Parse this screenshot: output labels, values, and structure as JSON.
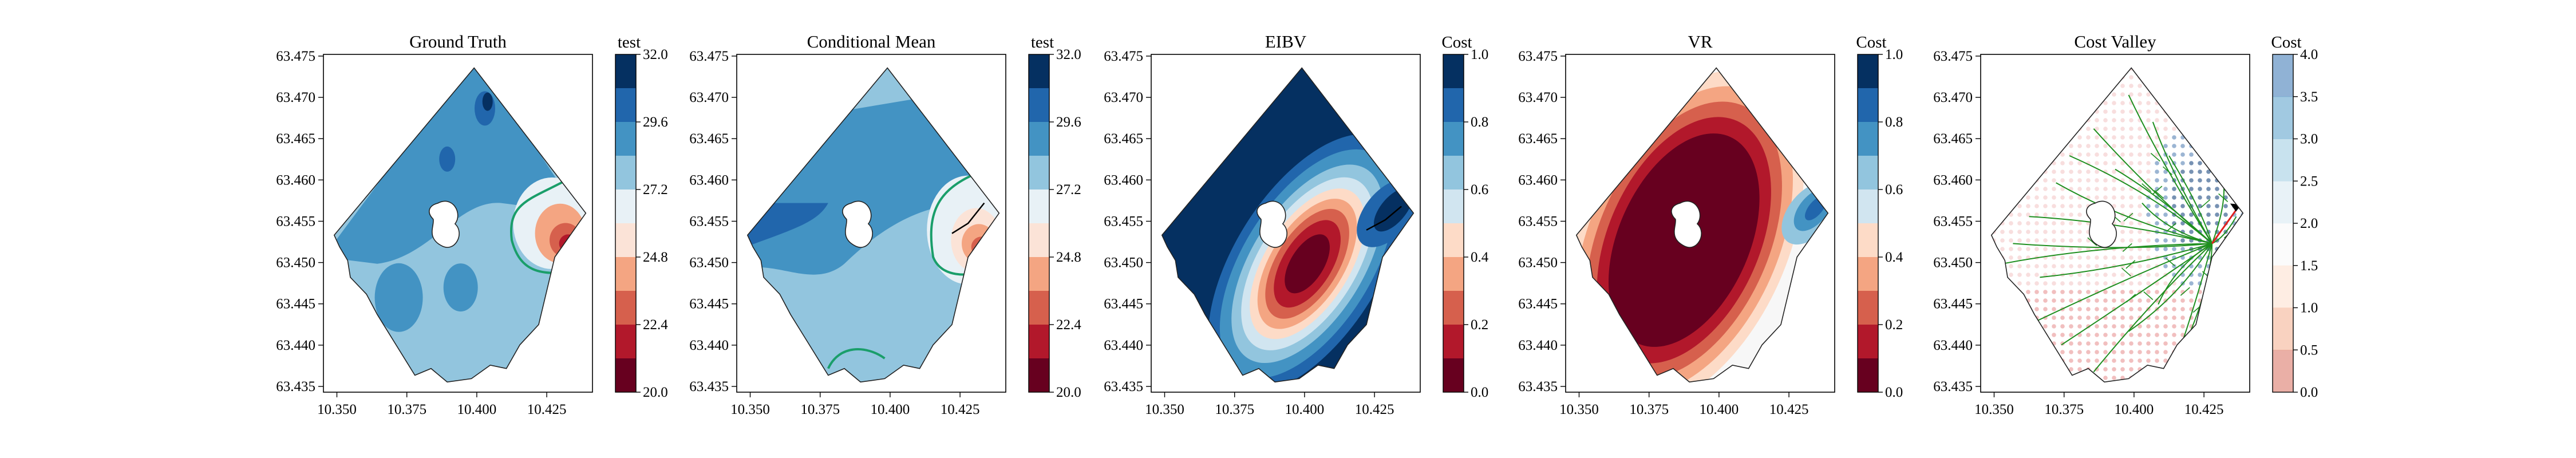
{
  "chart_data": [
    {
      "type": "contour",
      "title": "Ground Truth",
      "x_ticks": [
        "10.350",
        "10.375",
        "10.400",
        "10.425"
      ],
      "y_ticks": [
        "63.475",
        "63.470",
        "63.465",
        "63.460",
        "63.455",
        "63.450",
        "63.445",
        "63.440",
        "63.435"
      ],
      "colorbar": {
        "label": "test",
        "ticks": [
          "32.0",
          "29.6",
          "27.2",
          "24.8",
          "22.4",
          "20.0"
        ],
        "range": [
          20,
          32
        ],
        "colormap": "RdBu"
      },
      "contour_line_color": "#1a9e6a"
    },
    {
      "type": "contour",
      "title": "Conditional Mean",
      "x_ticks": [
        "10.350",
        "10.375",
        "10.400",
        "10.425"
      ],
      "y_ticks": [
        "63.475",
        "63.470",
        "63.465",
        "63.460",
        "63.455",
        "63.450",
        "63.445",
        "63.440",
        "63.435"
      ],
      "colorbar": {
        "label": "test",
        "ticks": [
          "32.0",
          "29.6",
          "27.2",
          "24.8",
          "22.4",
          "20.0"
        ],
        "range": [
          20,
          32
        ],
        "colormap": "RdBu"
      },
      "contour_line_color": "#1a9e6a"
    },
    {
      "type": "contour",
      "title": "EIBV",
      "x_ticks": [
        "10.350",
        "10.375",
        "10.400",
        "10.425"
      ],
      "y_ticks": [
        "63.475",
        "63.470",
        "63.465",
        "63.460",
        "63.455",
        "63.450",
        "63.445",
        "63.440",
        "63.435"
      ],
      "colorbar": {
        "label": "Cost",
        "ticks": [
          "1.0",
          "0.8",
          "0.6",
          "0.4",
          "0.2",
          "0.0"
        ],
        "range": [
          0,
          1
        ],
        "colormap": "RdBu"
      }
    },
    {
      "type": "contour",
      "title": "VR",
      "x_ticks": [
        "10.350",
        "10.375",
        "10.400",
        "10.425"
      ],
      "y_ticks": [
        "63.475",
        "63.470",
        "63.465",
        "63.460",
        "63.455",
        "63.450",
        "63.445",
        "63.440",
        "63.435"
      ],
      "colorbar": {
        "label": "Cost",
        "ticks": [
          "1.0",
          "0.8",
          "0.6",
          "0.4",
          "0.2",
          "0.0"
        ],
        "range": [
          0,
          1
        ],
        "colormap": "RdBu"
      }
    },
    {
      "type": "scatter",
      "title": "Cost Valley",
      "x_ticks": [
        "10.350",
        "10.375",
        "10.400",
        "10.425"
      ],
      "y_ticks": [
        "63.475",
        "63.470",
        "63.465",
        "63.460",
        "63.455",
        "63.450",
        "63.445",
        "63.440",
        "63.435"
      ],
      "colorbar": {
        "label": "Cost",
        "ticks": [
          "4.0",
          "3.5",
          "3.0",
          "2.5",
          "2.0",
          "1.5",
          "1.0",
          "0.5",
          "0.0"
        ],
        "range": [
          0,
          4
        ],
        "colormap": "RdBu (transparent)"
      },
      "tree_color": "#1f8f1f",
      "path_color": "#e02020"
    }
  ]
}
